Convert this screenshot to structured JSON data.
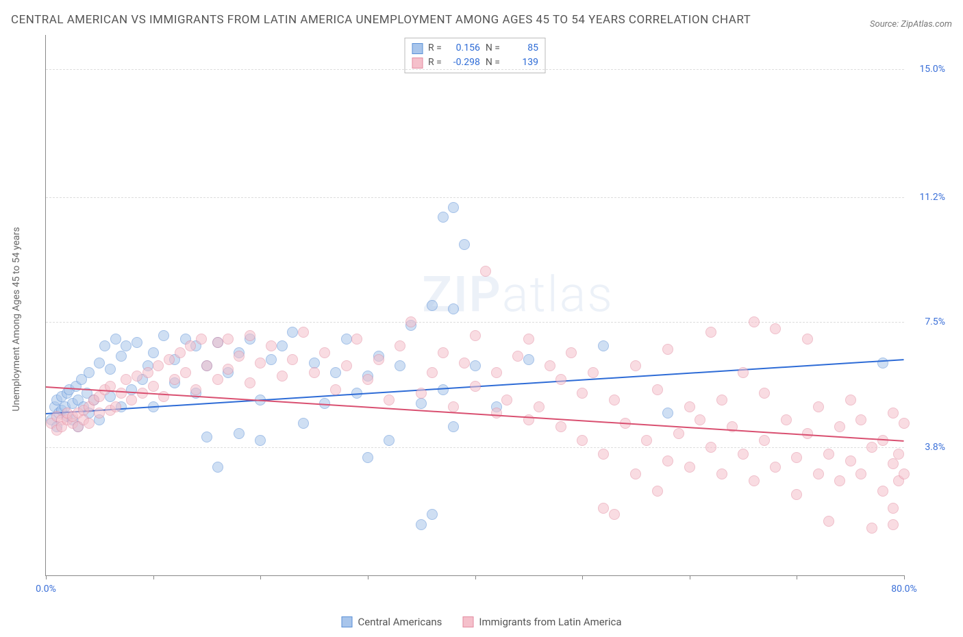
{
  "title": "CENTRAL AMERICAN VS IMMIGRANTS FROM LATIN AMERICA UNEMPLOYMENT AMONG AGES 45 TO 54 YEARS CORRELATION CHART",
  "source_label": "Source: ZipAtlas.com",
  "y_axis_label": "Unemployment Among Ages 45 to 54 years",
  "watermark": {
    "bold": "ZIP",
    "rest": "atlas"
  },
  "chart": {
    "type": "scatter",
    "background_color": "#ffffff",
    "grid_color": "#dddddd",
    "axis_color": "#888888",
    "xlim": [
      0,
      80
    ],
    "ylim": [
      0,
      16
    ],
    "x_ticks": [
      0,
      10,
      20,
      30,
      40,
      50,
      60,
      70,
      80
    ],
    "x_tick_labels": {
      "0": "0.0%",
      "80": "80.0%"
    },
    "y_gridlines": [
      3.8,
      7.5,
      11.2,
      15.0
    ],
    "y_tick_labels": [
      "3.8%",
      "7.5%",
      "11.2%",
      "15.0%"
    ],
    "point_radius": 8,
    "point_opacity": 0.55,
    "series": [
      {
        "name": "Central Americans",
        "fill": "#a8c5eb",
        "stroke": "#5a8fd6",
        "trend_color": "#2d6bd6",
        "R": "0.156",
        "N": "85",
        "trend": {
          "y_at_xmin": 4.8,
          "y_at_xmax": 6.4
        },
        "points": [
          [
            0.5,
            4.6
          ],
          [
            0.8,
            5.0
          ],
          [
            1,
            4.4
          ],
          [
            1,
            5.2
          ],
          [
            1.2,
            4.8
          ],
          [
            1.5,
            4.9
          ],
          [
            1.5,
            5.3
          ],
          [
            1.8,
            5.0
          ],
          [
            2,
            4.7
          ],
          [
            2,
            5.4
          ],
          [
            2.2,
            5.5
          ],
          [
            2.5,
            4.6
          ],
          [
            2.5,
            5.1
          ],
          [
            2.8,
            5.6
          ],
          [
            3,
            4.4
          ],
          [
            3,
            5.2
          ],
          [
            3.3,
            5.8
          ],
          [
            3.5,
            5.0
          ],
          [
            3.8,
            5.4
          ],
          [
            4,
            4.8
          ],
          [
            4,
            6.0
          ],
          [
            4.5,
            5.2
          ],
          [
            5,
            4.6
          ],
          [
            5,
            6.3
          ],
          [
            5.5,
            6.8
          ],
          [
            6,
            5.3
          ],
          [
            6,
            6.1
          ],
          [
            6.5,
            7.0
          ],
          [
            7,
            5.0
          ],
          [
            7,
            6.5
          ],
          [
            7.5,
            6.8
          ],
          [
            8,
            5.5
          ],
          [
            8.5,
            6.9
          ],
          [
            9,
            5.8
          ],
          [
            9.5,
            6.2
          ],
          [
            10,
            5.0
          ],
          [
            10,
            6.6
          ],
          [
            11,
            7.1
          ],
          [
            12,
            5.7
          ],
          [
            12,
            6.4
          ],
          [
            13,
            7.0
          ],
          [
            14,
            6.8
          ],
          [
            14,
            5.4
          ],
          [
            15,
            6.2
          ],
          [
            15,
            4.1
          ],
          [
            16,
            6.9
          ],
          [
            16,
            3.2
          ],
          [
            17,
            6.0
          ],
          [
            18,
            6.6
          ],
          [
            18,
            4.2
          ],
          [
            19,
            7.0
          ],
          [
            20,
            5.2
          ],
          [
            20,
            4.0
          ],
          [
            21,
            6.4
          ],
          [
            22,
            6.8
          ],
          [
            23,
            7.2
          ],
          [
            24,
            4.5
          ],
          [
            25,
            6.3
          ],
          [
            26,
            5.1
          ],
          [
            27,
            6.0
          ],
          [
            28,
            7.0
          ],
          [
            29,
            5.4
          ],
          [
            30,
            3.5
          ],
          [
            30,
            5.9
          ],
          [
            31,
            6.5
          ],
          [
            32,
            4.0
          ],
          [
            33,
            6.2
          ],
          [
            34,
            7.4
          ],
          [
            35,
            1.5
          ],
          [
            35,
            5.1
          ],
          [
            36,
            1.8
          ],
          [
            36,
            8.0
          ],
          [
            37,
            10.6
          ],
          [
            37,
            5.5
          ],
          [
            38,
            10.9
          ],
          [
            38,
            4.4
          ],
          [
            38,
            7.9
          ],
          [
            39,
            9.8
          ],
          [
            40,
            6.2
          ],
          [
            42,
            5.0
          ],
          [
            45,
            6.4
          ],
          [
            52,
            6.8
          ],
          [
            58,
            4.8
          ],
          [
            78,
            6.3
          ]
        ]
      },
      {
        "name": "Immigrants from Latin America",
        "fill": "#f5c0cb",
        "stroke": "#e38ba0",
        "trend_color": "#d94f70",
        "R": "-0.298",
        "N": "139",
        "trend": {
          "y_at_xmin": 5.6,
          "y_at_xmax": 4.0
        },
        "points": [
          [
            0.5,
            4.5
          ],
          [
            1,
            4.7
          ],
          [
            1,
            4.3
          ],
          [
            1.5,
            4.6
          ],
          [
            1.5,
            4.4
          ],
          [
            2,
            4.6
          ],
          [
            2,
            4.8
          ],
          [
            2.5,
            4.5
          ],
          [
            2.5,
            4.7
          ],
          [
            3,
            4.8
          ],
          [
            3,
            4.4
          ],
          [
            3.5,
            4.9
          ],
          [
            3.5,
            4.6
          ],
          [
            4,
            5.0
          ],
          [
            4,
            4.5
          ],
          [
            4.5,
            5.2
          ],
          [
            5,
            4.8
          ],
          [
            5,
            5.3
          ],
          [
            5.5,
            5.5
          ],
          [
            6,
            4.9
          ],
          [
            6,
            5.6
          ],
          [
            6.5,
            5.0
          ],
          [
            7,
            5.4
          ],
          [
            7.5,
            5.8
          ],
          [
            8,
            5.2
          ],
          [
            8.5,
            5.9
          ],
          [
            9,
            5.4
          ],
          [
            9.5,
            6.0
          ],
          [
            10,
            5.6
          ],
          [
            10.5,
            6.2
          ],
          [
            11,
            5.3
          ],
          [
            11.5,
            6.4
          ],
          [
            12,
            5.8
          ],
          [
            12.5,
            6.6
          ],
          [
            13,
            6.0
          ],
          [
            13.5,
            6.8
          ],
          [
            14,
            5.5
          ],
          [
            14.5,
            7.0
          ],
          [
            15,
            6.2
          ],
          [
            16,
            6.9
          ],
          [
            16,
            5.8
          ],
          [
            17,
            7.0
          ],
          [
            17,
            6.1
          ],
          [
            18,
            6.5
          ],
          [
            19,
            7.1
          ],
          [
            19,
            5.7
          ],
          [
            20,
            6.3
          ],
          [
            21,
            6.8
          ],
          [
            22,
            5.9
          ],
          [
            23,
            6.4
          ],
          [
            24,
            7.2
          ],
          [
            25,
            6.0
          ],
          [
            26,
            6.6
          ],
          [
            27,
            5.5
          ],
          [
            28,
            6.2
          ],
          [
            29,
            7.0
          ],
          [
            30,
            5.8
          ],
          [
            31,
            6.4
          ],
          [
            32,
            5.2
          ],
          [
            33,
            6.8
          ],
          [
            34,
            7.5
          ],
          [
            35,
            5.4
          ],
          [
            36,
            6.0
          ],
          [
            37,
            6.6
          ],
          [
            38,
            5.0
          ],
          [
            39,
            6.3
          ],
          [
            40,
            5.6
          ],
          [
            40,
            7.1
          ],
          [
            41,
            9.0
          ],
          [
            42,
            4.8
          ],
          [
            42,
            6.0
          ],
          [
            43,
            5.2
          ],
          [
            44,
            6.5
          ],
          [
            45,
            4.6
          ],
          [
            45,
            7.0
          ],
          [
            46,
            5.0
          ],
          [
            47,
            6.2
          ],
          [
            48,
            4.4
          ],
          [
            48,
            5.8
          ],
          [
            49,
            6.6
          ],
          [
            50,
            4.0
          ],
          [
            50,
            5.4
          ],
          [
            51,
            6.0
          ],
          [
            52,
            3.6
          ],
          [
            52,
            2.0
          ],
          [
            53,
            5.2
          ],
          [
            53,
            1.8
          ],
          [
            54,
            4.5
          ],
          [
            55,
            6.2
          ],
          [
            55,
            3.0
          ],
          [
            56,
            4.0
          ],
          [
            57,
            5.5
          ],
          [
            57,
            2.5
          ],
          [
            58,
            3.4
          ],
          [
            58,
            6.7
          ],
          [
            59,
            4.2
          ],
          [
            60,
            5.0
          ],
          [
            60,
            3.2
          ],
          [
            61,
            4.6
          ],
          [
            62,
            3.8
          ],
          [
            62,
            7.2
          ],
          [
            63,
            3.0
          ],
          [
            63,
            5.2
          ],
          [
            64,
            4.4
          ],
          [
            65,
            3.6
          ],
          [
            65,
            6.0
          ],
          [
            66,
            7.5
          ],
          [
            66,
            2.8
          ],
          [
            67,
            4.0
          ],
          [
            67,
            5.4
          ],
          [
            68,
            3.2
          ],
          [
            68,
            7.3
          ],
          [
            69,
            4.6
          ],
          [
            70,
            3.5
          ],
          [
            70,
            2.4
          ],
          [
            71,
            4.2
          ],
          [
            71,
            7.0
          ],
          [
            72,
            3.0
          ],
          [
            72,
            5.0
          ],
          [
            73,
            3.6
          ],
          [
            73,
            1.6
          ],
          [
            74,
            4.4
          ],
          [
            74,
            2.8
          ],
          [
            75,
            3.4
          ],
          [
            75,
            5.2
          ],
          [
            76,
            3.0
          ],
          [
            76,
            4.6
          ],
          [
            77,
            1.4
          ],
          [
            77,
            3.8
          ],
          [
            78,
            2.5
          ],
          [
            78,
            4.0
          ],
          [
            79,
            3.3
          ],
          [
            79,
            2.0
          ],
          [
            79,
            1.5
          ],
          [
            79,
            4.8
          ],
          [
            79.5,
            3.6
          ],
          [
            79.5,
            2.8
          ],
          [
            80,
            4.5
          ],
          [
            80,
            3.0
          ]
        ]
      }
    ]
  },
  "legend": {
    "R_label": "R =",
    "N_label": "N ="
  }
}
